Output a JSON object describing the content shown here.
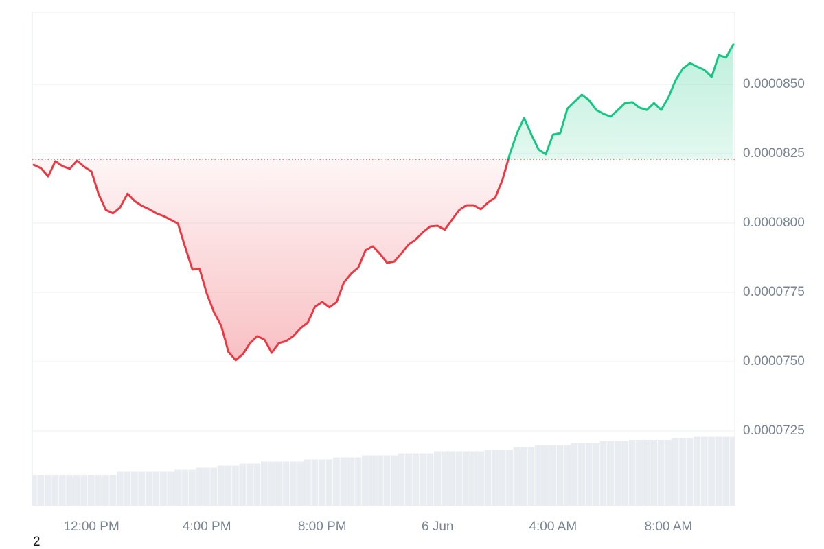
{
  "chart_data": {
    "type": "line",
    "footnote": "2",
    "x": [
      10,
      10.25,
      10.5,
      10.75,
      11,
      11.25,
      11.5,
      11.75,
      12,
      12.25,
      12.5,
      12.75,
      13,
      13.25,
      13.5,
      13.75,
      14,
      14.25,
      14.5,
      14.75,
      15,
      15.25,
      15.5,
      15.75,
      16,
      16.25,
      16.5,
      16.75,
      17,
      17.25,
      17.5,
      17.75,
      18,
      18.25,
      18.5,
      18.75,
      19,
      19.25,
      19.5,
      19.75,
      20,
      20.25,
      20.5,
      20.75,
      21,
      21.25,
      21.5,
      21.75,
      22,
      22.25,
      22.5,
      22.75,
      23,
      23.25,
      23.5,
      23.75,
      24,
      24.25,
      24.5,
      24.75,
      25,
      25.25,
      25.5,
      25.75,
      26,
      26.25,
      26.5,
      26.75,
      27,
      27.25,
      27.5,
      27.75,
      28,
      28.25,
      28.5,
      28.75,
      29,
      29.25,
      29.5,
      29.75,
      30,
      30.25,
      30.5,
      30.75,
      31,
      31.25,
      31.5,
      31.75,
      32,
      32.25,
      32.5,
      32.75,
      33,
      33.25,
      33.5,
      33.75,
      34,
      34.25
    ],
    "series": [
      {
        "color_up": "#16c784",
        "color_down": "#ea3943",
        "values": [
          8.21e-05,
          8.198e-05,
          8.168e-05,
          8.223e-05,
          8.205e-05,
          8.196e-05,
          8.225e-05,
          8.203e-05,
          8.186e-05,
          8.104e-05,
          8.047e-05,
          8.035e-05,
          8.057e-05,
          8.106e-05,
          8.079e-05,
          8.062e-05,
          8.05e-05,
          8.035e-05,
          8.025e-05,
          8.012e-05,
          7.998e-05,
          7.913e-05,
          7.832e-05,
          7.834e-05,
          7.745e-05,
          7.678e-05,
          7.629e-05,
          7.535e-05,
          7.505e-05,
          7.527e-05,
          7.567e-05,
          7.592e-05,
          7.579e-05,
          7.532e-05,
          7.567e-05,
          7.574e-05,
          7.592e-05,
          7.621e-05,
          7.641e-05,
          7.698e-05,
          7.715e-05,
          7.696e-05,
          7.715e-05,
          7.785e-05,
          7.817e-05,
          7.839e-05,
          7.901e-05,
          7.916e-05,
          7.889e-05,
          7.856e-05,
          7.861e-05,
          7.891e-05,
          7.923e-05,
          7.941e-05,
          7.968e-05,
          7.988e-05,
          7.99e-05,
          7.976e-05,
          8.012e-05,
          8.047e-05,
          8.064e-05,
          8.064e-05,
          8.05e-05,
          8.074e-05,
          8.092e-05,
          8.156e-05,
          8.248e-05,
          8.324e-05,
          8.379e-05,
          8.319e-05,
          8.265e-05,
          8.248e-05,
          8.319e-05,
          8.324e-05,
          8.413e-05,
          8.438e-05,
          8.463e-05,
          8.443e-05,
          8.408e-05,
          8.394e-05,
          8.384e-05,
          8.408e-05,
          8.433e-05,
          8.436e-05,
          8.416e-05,
          8.408e-05,
          8.433e-05,
          8.408e-05,
          8.453e-05,
          8.515e-05,
          8.557e-05,
          8.577e-05,
          8.564e-05,
          8.552e-05,
          8.527e-05,
          8.606e-05,
          8.597e-05,
          8.644e-05
        ]
      }
    ],
    "baseline": 8.23e-05,
    "volume": {
      "color": "#e9edf2",
      "ylim": [
        0,
        100
      ],
      "values": [
        30,
        30,
        30,
        30,
        30,
        30,
        30,
        30,
        30,
        30,
        30,
        30,
        33,
        33,
        33,
        33,
        33,
        33,
        33,
        33,
        35,
        35,
        35,
        37,
        37,
        37,
        39,
        39,
        39,
        41,
        41,
        41,
        43,
        43,
        43,
        43,
        43,
        43,
        45,
        45,
        45,
        45,
        47,
        47,
        47,
        47,
        49,
        49,
        49,
        49,
        49,
        51,
        51,
        51,
        51,
        51,
        53,
        53,
        53,
        53,
        53,
        53,
        53,
        54,
        54,
        54,
        54,
        57,
        57,
        57,
        59,
        59,
        59,
        59,
        59,
        61,
        61,
        61,
        61,
        63,
        63,
        63,
        63,
        64,
        64,
        64,
        64,
        64,
        64,
        66,
        66,
        66,
        67,
        67,
        67,
        67,
        67,
        67
      ]
    },
    "xlim": [
      9.95,
      34.3
    ],
    "xticks": [
      {
        "value": 12,
        "label": "12:00 PM"
      },
      {
        "value": 16,
        "label": "4:00 PM"
      },
      {
        "value": 20,
        "label": "8:00 PM"
      },
      {
        "value": 24,
        "label": "6 Jun"
      },
      {
        "value": 28,
        "label": "4:00 AM"
      },
      {
        "value": 32,
        "label": "8:00 AM"
      }
    ],
    "ylim": [
      6.98e-05,
      8.76e-05
    ],
    "yticks": [
      {
        "value": 7.25e-05,
        "label": "0.0000725"
      },
      {
        "value": 7.5e-05,
        "label": "0.0000750"
      },
      {
        "value": 7.75e-05,
        "label": "0.0000775"
      },
      {
        "value": 8e-05,
        "label": "0.0000800"
      },
      {
        "value": 8.25e-05,
        "label": "0.0000825"
      },
      {
        "value": 8.5e-05,
        "label": "0.0000850"
      }
    ],
    "grid": true
  }
}
